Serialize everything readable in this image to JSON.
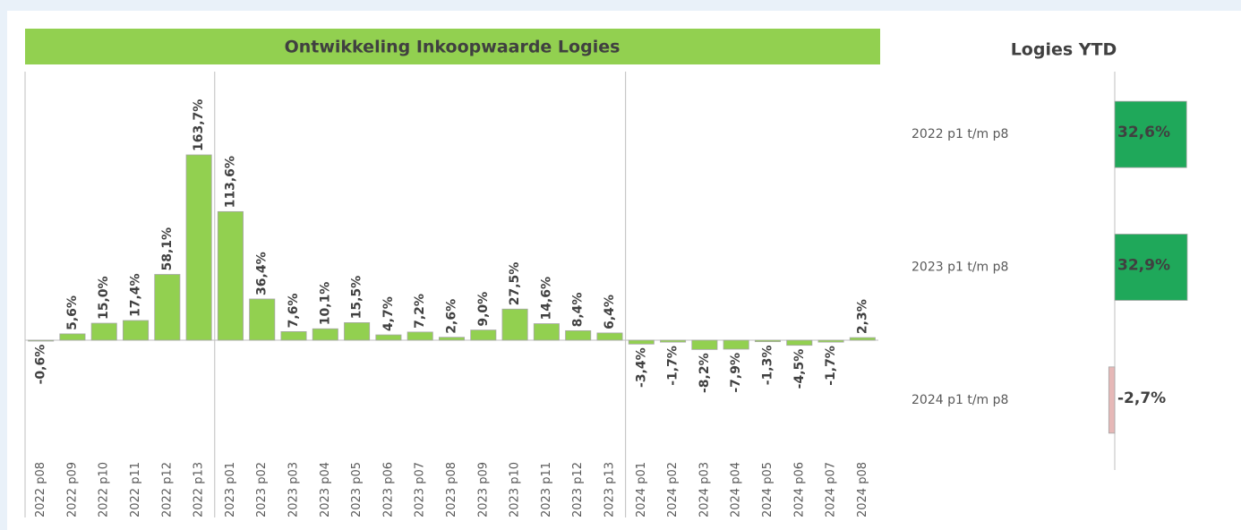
{
  "chart_data": [
    {
      "type": "bar",
      "title": "Ontwikkeling Inkoopwaarde Logies",
      "categories": [
        "2022 p08",
        "2022 p09",
        "2022 p10",
        "2022 p11",
        "2022 p12",
        "2022 p13",
        "2023 p01",
        "2023 p02",
        "2023 p03",
        "2023 p04",
        "2023 p05",
        "2023 p06",
        "2023 p07",
        "2023 p08",
        "2023 p09",
        "2023 p10",
        "2023 p11",
        "2023 p12",
        "2023 p13",
        "2024 p01",
        "2024 p02",
        "2024 p03",
        "2024 p04",
        "2024 p05",
        "2024 p06",
        "2024 p07",
        "2024 p08"
      ],
      "values": [
        -0.6,
        5.6,
        15.0,
        17.4,
        58.1,
        163.7,
        113.6,
        36.4,
        7.6,
        10.1,
        15.5,
        4.7,
        7.2,
        2.6,
        9.0,
        27.5,
        14.6,
        8.4,
        6.4,
        -3.4,
        -1.7,
        -8.2,
        -7.9,
        -1.3,
        -4.5,
        -1.7,
        2.3
      ],
      "value_labels": [
        "-0,6%",
        "5,6%",
        "15,0%",
        "17,4%",
        "58,1%",
        "163,7%",
        "113,6%",
        "36,4%",
        "7,6%",
        "10,1%",
        "15,5%",
        "4,7%",
        "7,2%",
        "2,6%",
        "9,0%",
        "27,5%",
        "14,6%",
        "8,4%",
        "6,4%",
        "-3,4%",
        "-1,7%",
        "-8,2%",
        "-7,9%",
        "-1,3%",
        "-4,5%",
        "-1,7%",
        "2,3%"
      ],
      "color": "#92d050"
    },
    {
      "type": "hbar",
      "title": "Logies YTD",
      "categories": [
        "2022 p1 t/m p8",
        "2023 p1 t/m p8",
        "2024 p1 t/m p8"
      ],
      "values": [
        32.6,
        32.9,
        -2.7
      ],
      "value_labels": [
        "32,6%",
        "32,9%",
        "-2,7%"
      ],
      "colors": [
        "#1fa85a",
        "#1fa85a",
        "#e6b8b7"
      ]
    }
  ]
}
